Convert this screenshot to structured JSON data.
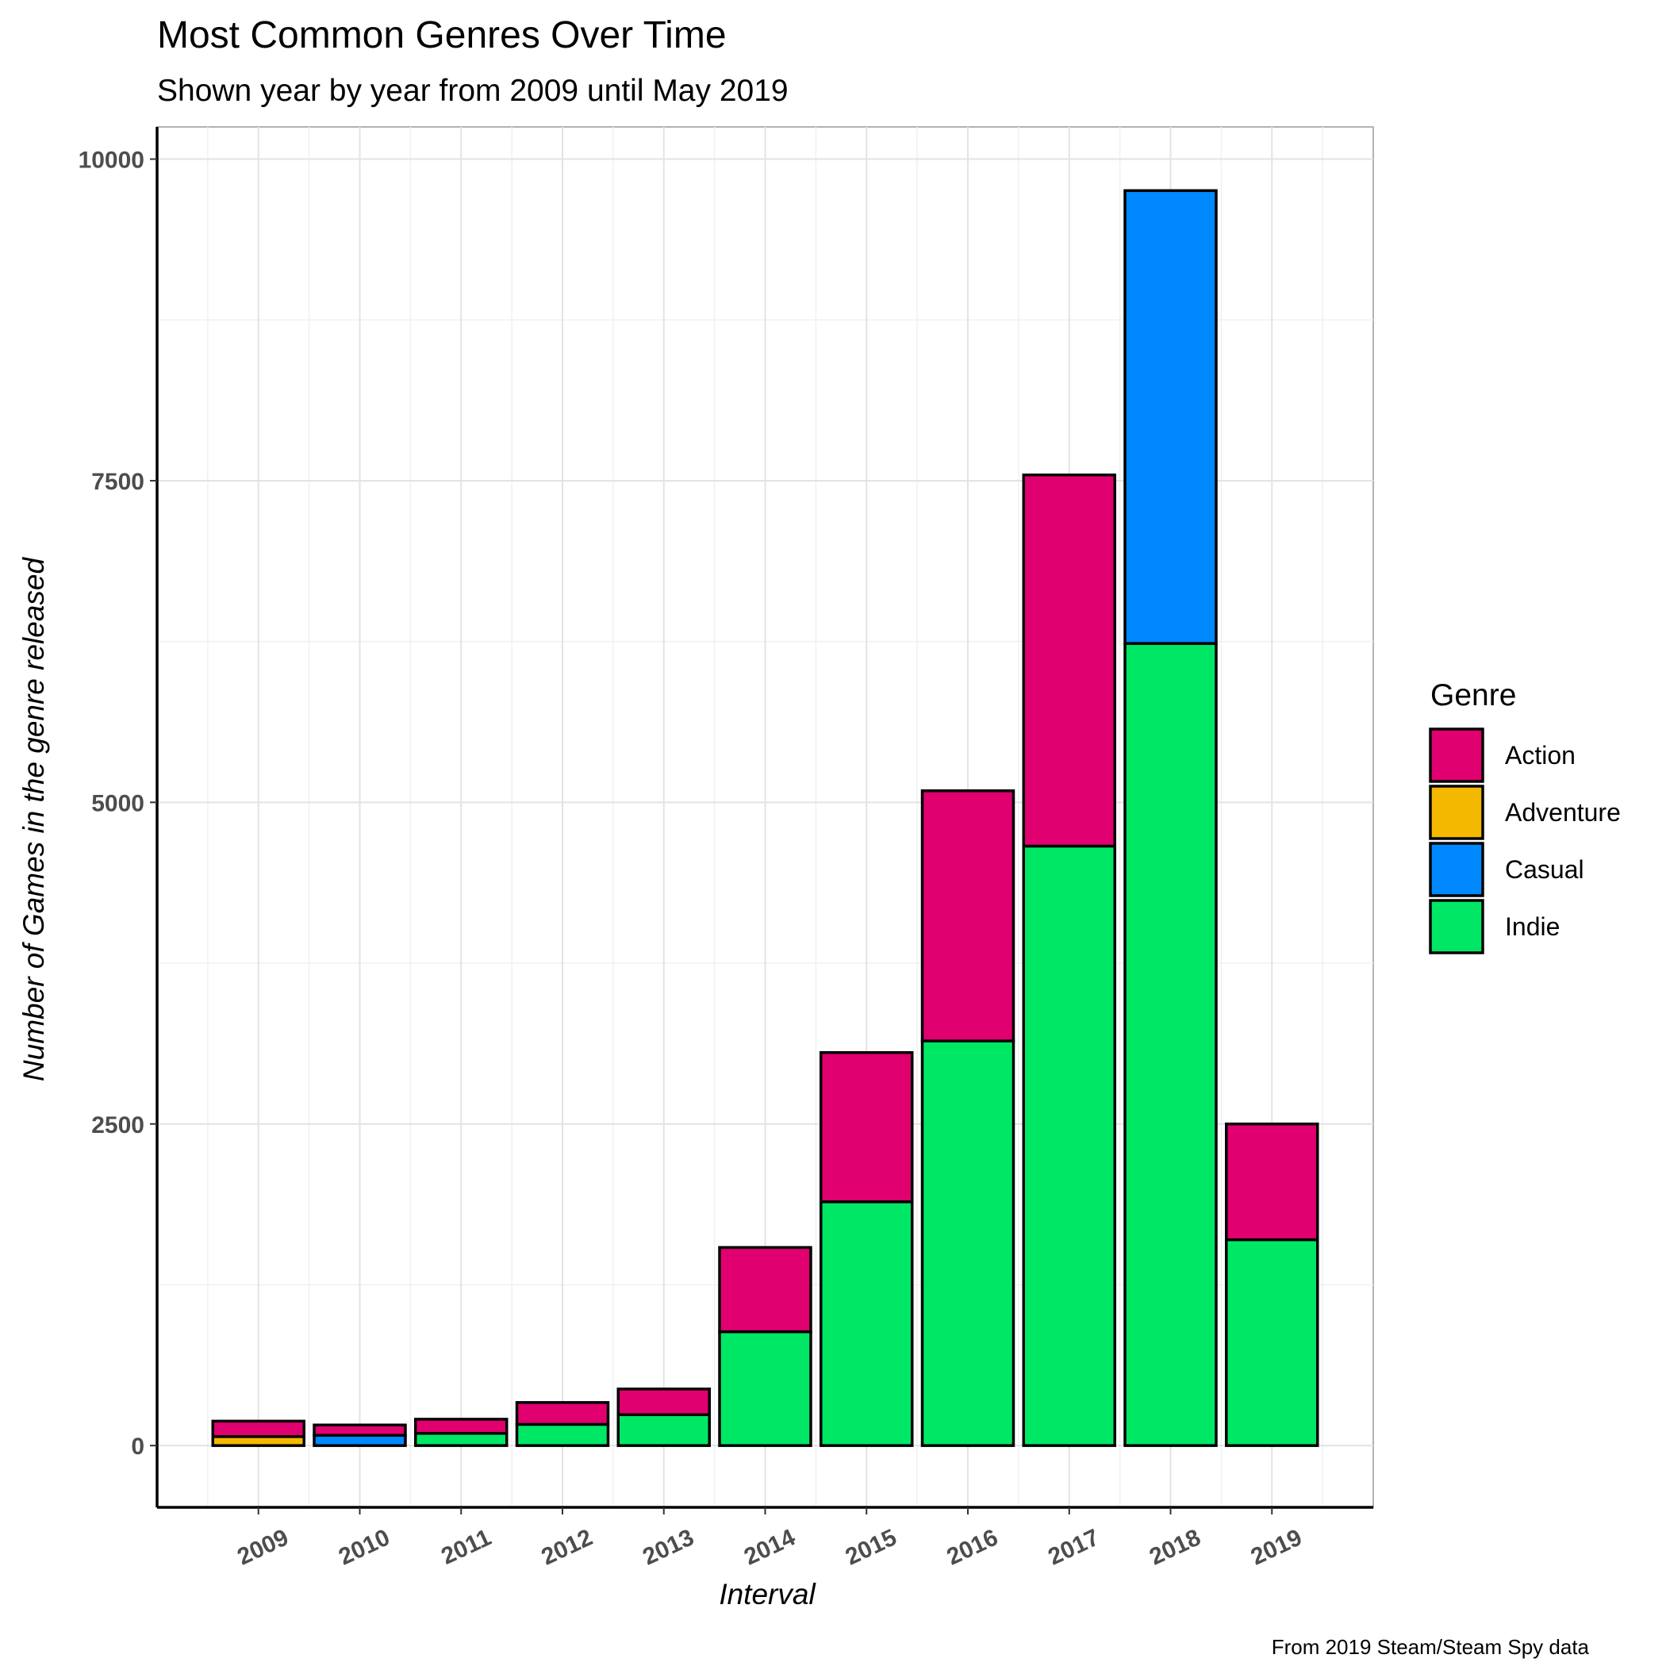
{
  "chart_data": {
    "type": "bar",
    "stacked": true,
    "title": "Most Common Genres Over Time",
    "subtitle": "Shown year by year from 2009 until May 2019",
    "xlabel": "Interval",
    "ylabel": "Number of Games in the genre released",
    "caption": "From 2019 Steam/Steam Spy data",
    "categories": [
      "2009",
      "2010",
      "2011",
      "2012",
      "2013",
      "2014",
      "2015",
      "2016",
      "2017",
      "2018",
      "2019"
    ],
    "ylim": [
      -480,
      10250
    ],
    "yticks": [
      0,
      2500,
      5000,
      7500,
      10000
    ],
    "grid": true,
    "legend": {
      "title": "Genre",
      "placement": "right"
    },
    "series": [
      {
        "name": "Indie",
        "color": "#00e765",
        "values": [
          0,
          0,
          95,
          165,
          240,
          885,
          1895,
          3145,
          4660,
          6235,
          1600
        ]
      },
      {
        "name": "Adventure",
        "color": "#f5b800",
        "values": [
          70,
          0,
          0,
          0,
          0,
          0,
          0,
          0,
          0,
          0,
          0
        ]
      },
      {
        "name": "Casual",
        "color": "#0088ff",
        "values": [
          0,
          80,
          0,
          0,
          0,
          0,
          0,
          0,
          0,
          3520,
          0
        ]
      },
      {
        "name": "Action",
        "color": "#e0006f",
        "values": [
          120,
          80,
          110,
          170,
          200,
          655,
          1160,
          1945,
          2885,
          0,
          900
        ]
      }
    ],
    "legend_order": [
      "Action",
      "Adventure",
      "Casual",
      "Indie"
    ]
  }
}
